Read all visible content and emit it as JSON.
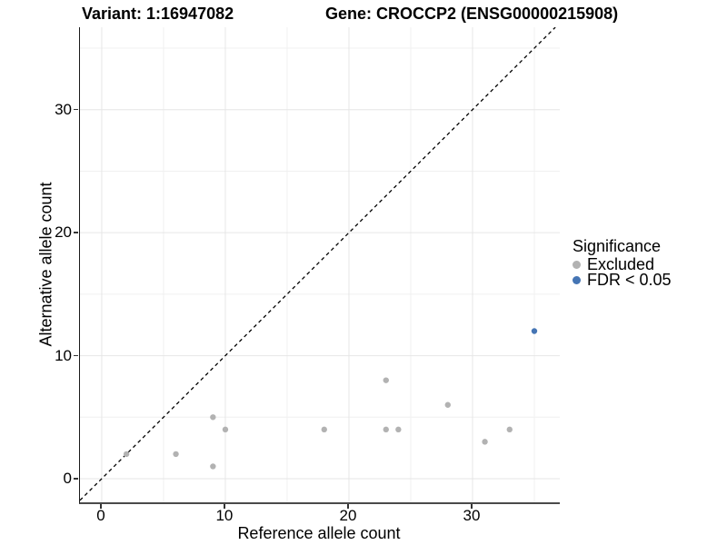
{
  "titles": {
    "variant": "Variant: 1:16947082",
    "gene": "Gene: CROCCP2 (ENSG00000215908)"
  },
  "chart_data": {
    "type": "scatter",
    "xlabel": "Reference allele count",
    "ylabel": "Alternative allele count",
    "xlim": [
      -1.76,
      37.06
    ],
    "ylim": [
      -1.92,
      36.7
    ],
    "x_ticks": [
      0,
      10,
      20,
      30
    ],
    "y_ticks": [
      0,
      10,
      20,
      30
    ],
    "x_minor_ticks": [
      5,
      15,
      25,
      35
    ],
    "y_minor_ticks": [
      5,
      15,
      25,
      35
    ],
    "grid": "on",
    "major_grid_color": "#e6e6e6",
    "minor_grid_color": "#f0f0f0",
    "identity_line": {
      "desc": "y = x dashed reference line",
      "color": "#000000",
      "dash": "4,3.5"
    },
    "point_radius": 3.2,
    "series": [
      {
        "name": "Excluded",
        "color": "#b2b2b2",
        "points": [
          [
            2,
            2
          ],
          [
            6,
            2
          ],
          [
            9,
            1
          ],
          [
            9,
            5
          ],
          [
            10,
            4
          ],
          [
            18,
            4
          ],
          [
            23,
            4
          ],
          [
            23,
            8
          ],
          [
            24,
            4
          ],
          [
            28,
            6
          ],
          [
            31,
            3
          ],
          [
            33,
            4
          ]
        ]
      },
      {
        "name": "FDR < 0.05",
        "color": "#4575b4",
        "points": [
          [
            35,
            12
          ]
        ]
      }
    ],
    "legend": {
      "title": "Significance",
      "position": "right"
    }
  }
}
